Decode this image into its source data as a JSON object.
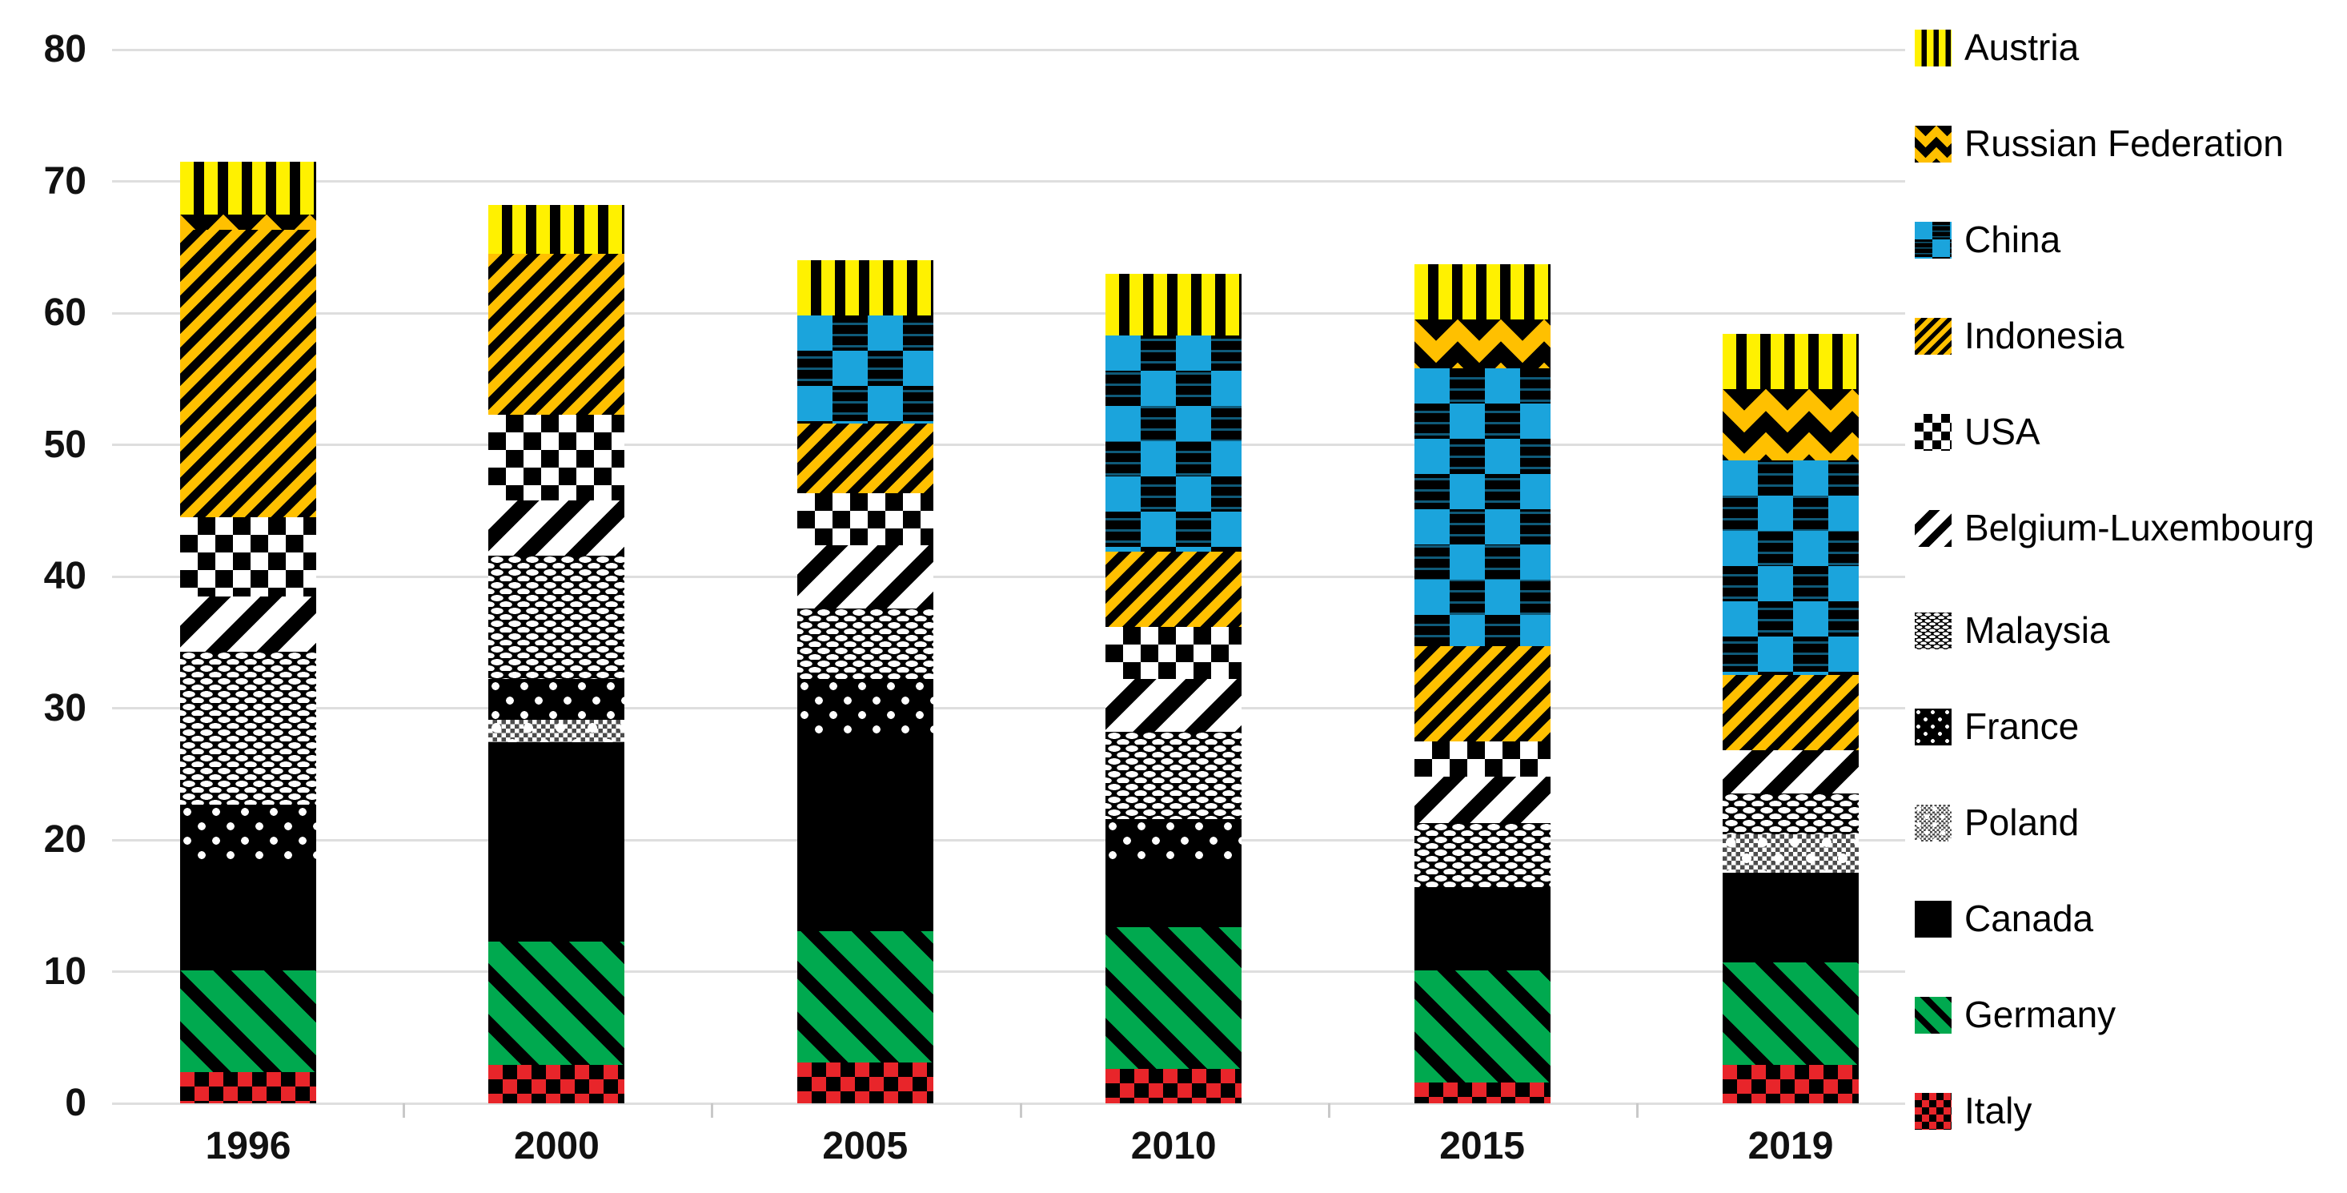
{
  "chart_data": {
    "type": "bar",
    "stacked": true,
    "title": "",
    "xlabel": "",
    "ylabel": "",
    "categories": [
      "1996",
      "2000",
      "2005",
      "2010",
      "2015",
      "2019"
    ],
    "series": [
      {
        "name": "Italy",
        "pattern": "italy",
        "values": [
          2.4,
          2.9,
          3.1,
          2.6,
          1.6,
          2.9
        ]
      },
      {
        "name": "Germany",
        "pattern": "germany",
        "values": [
          7.7,
          9.4,
          10.0,
          10.8,
          8.5,
          7.8
        ]
      },
      {
        "name": "Canada",
        "pattern": "canada",
        "values": [
          8.1,
          15.1,
          14.7,
          4.8,
          6.3,
          6.8
        ]
      },
      {
        "name": "Poland",
        "pattern": "poland",
        "values": [
          0,
          1.7,
          0,
          0,
          0,
          2.9
        ]
      },
      {
        "name": "France",
        "pattern": "france",
        "values": [
          4.5,
          3.1,
          4.4,
          3.4,
          0,
          0
        ]
      },
      {
        "name": "Malaysia",
        "pattern": "malaysia",
        "values": [
          11.6,
          9.4,
          5.4,
          6.6,
          4.9,
          3.1
        ]
      },
      {
        "name": "Belgium-Luxembourg",
        "pattern": "belgium-luxembourg",
        "values": [
          4.2,
          4.2,
          4.8,
          4.0,
          3.5,
          3.3
        ]
      },
      {
        "name": "USA",
        "pattern": "usa",
        "values": [
          6.0,
          6.5,
          3.9,
          4.0,
          2.7,
          0
        ]
      },
      {
        "name": "Indonesia",
        "pattern": "indonesia",
        "values": [
          21.8,
          12.2,
          5.3,
          5.7,
          7.2,
          5.7
        ]
      },
      {
        "name": "China",
        "pattern": "china",
        "values": [
          0,
          0,
          8.2,
          16.4,
          21.1,
          16.3
        ]
      },
      {
        "name": "Russian Federation",
        "pattern": "russian-federation",
        "values": [
          1.2,
          0,
          0,
          0,
          3.7,
          5.4
        ]
      },
      {
        "name": "Austria",
        "pattern": "austria",
        "values": [
          4.0,
          3.7,
          4.2,
          4.7,
          4.2,
          4.2
        ]
      }
    ],
    "totals": [
      71.5,
      68.2,
      64.0,
      63.0,
      63.7,
      58.4
    ],
    "ylim": [
      0,
      80
    ],
    "yticks": [
      0,
      10,
      20,
      30,
      40,
      50,
      60,
      70,
      80
    ],
    "grid": true,
    "legend_position": "right"
  },
  "legend": {
    "items": [
      {
        "label": "Austria",
        "pattern": "austria"
      },
      {
        "label": "Russian Federation",
        "pattern": "russian-federation"
      },
      {
        "label": "China",
        "pattern": "china"
      },
      {
        "label": "Indonesia",
        "pattern": "indonesia"
      },
      {
        "label": "USA",
        "pattern": "usa"
      },
      {
        "label": "Belgium-Luxembourg",
        "pattern": "belgium-luxembourg"
      },
      {
        "label": "Malaysia",
        "pattern": "malaysia"
      },
      {
        "label": "France",
        "pattern": "france"
      },
      {
        "label": "Poland",
        "pattern": "poland"
      },
      {
        "label": "Canada",
        "pattern": "canada"
      },
      {
        "label": "Germany",
        "pattern": "germany"
      },
      {
        "label": "Italy",
        "pattern": "italy"
      }
    ]
  },
  "colors": {
    "austria_yellow": "#FFF100",
    "gold": "#FFC000",
    "china_blue": "#1BA4DC",
    "germany_green": "#00A94F",
    "italy_red": "#E8252A",
    "black": "#000000",
    "gridline_gray": "#DEDEDE",
    "background": "#FFFFFF"
  }
}
